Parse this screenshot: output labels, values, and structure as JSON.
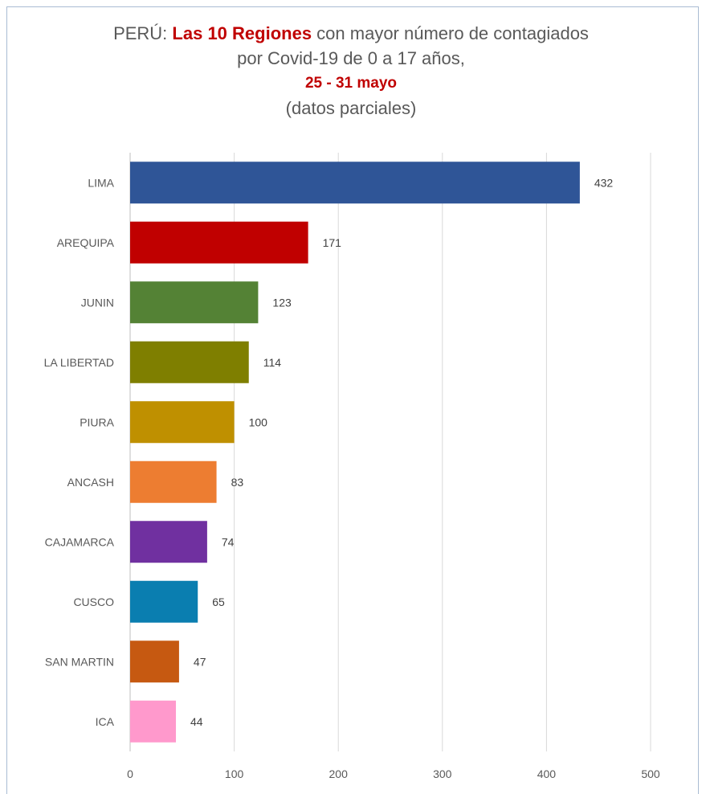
{
  "chart_data": {
    "type": "bar",
    "orientation": "horizontal",
    "title": {
      "prefix": "PERÚ: ",
      "highlight": "Las 10 Regiones",
      "rest": " con mayor número de contagiados",
      "line2": "por Covid-19 de 0 a 17 años,",
      "line3": "25 - 31 mayo",
      "line4": "(datos parciales)"
    },
    "categories": [
      "LIMA",
      "AREQUIPA",
      "JUNIN",
      "LA LIBERTAD",
      "PIURA",
      "ANCASH",
      "CAJAMARCA",
      "CUSCO",
      "SAN MARTIN",
      "ICA"
    ],
    "values": [
      432,
      171,
      123,
      114,
      100,
      83,
      74,
      65,
      47,
      44
    ],
    "colors": [
      "#2f5597",
      "#c00000",
      "#548235",
      "#7f7f00",
      "#bf9000",
      "#ed7d31",
      "#7030a0",
      "#0a7eb0",
      "#c65911",
      "#ff99cc"
    ],
    "xlim": [
      0,
      500
    ],
    "xticks": [
      0,
      100,
      200,
      300,
      400,
      500
    ],
    "grid": "vertical",
    "legend": "none"
  }
}
